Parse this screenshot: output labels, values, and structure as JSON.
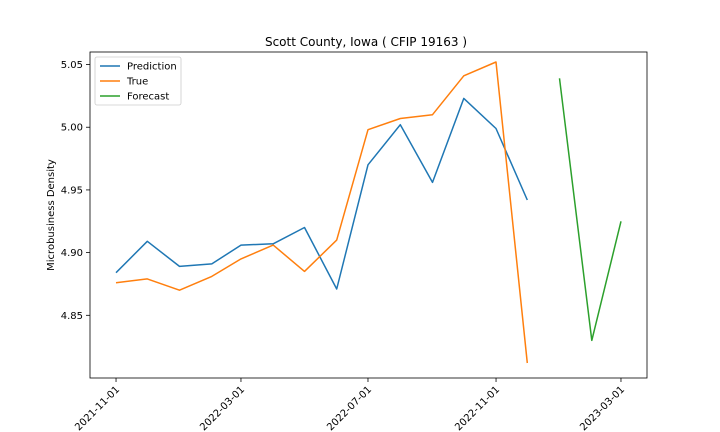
{
  "chart_data": {
    "type": "line",
    "title": "Scott County, Iowa ( CFIP 19163 )",
    "xlabel": "",
    "ylabel": "Microbusiness Density",
    "xlim": [
      "2021-10-07",
      "2023-03-26"
    ],
    "ylim": [
      4.8,
      5.06
    ],
    "x_ticks": [
      "2021-11-01",
      "2022-03-01",
      "2022-07-01",
      "2022-11-01",
      "2023-03-01"
    ],
    "y_ticks": [
      "4.85",
      "4.90",
      "4.95",
      "5.00",
      "5.05"
    ],
    "legend_position": "top-left",
    "grid": false,
    "series": [
      {
        "name": "Prediction",
        "color": "#1f77b4",
        "x": [
          "2021-11-01",
          "2021-12-01",
          "2022-01-01",
          "2022-02-01",
          "2022-03-01",
          "2022-04-01",
          "2022-05-01",
          "2022-06-01",
          "2022-07-01",
          "2022-08-01",
          "2022-09-01",
          "2022-10-01",
          "2022-11-01",
          "2022-12-01"
        ],
        "y": [
          4.884,
          4.909,
          4.889,
          4.891,
          4.906,
          4.907,
          4.92,
          4.871,
          4.97,
          5.002,
          4.956,
          5.023,
          4.999,
          4.942
        ]
      },
      {
        "name": "True",
        "color": "#ff7f0e",
        "x": [
          "2021-11-01",
          "2021-12-01",
          "2022-01-01",
          "2022-02-01",
          "2022-03-01",
          "2022-04-01",
          "2022-05-01",
          "2022-06-01",
          "2022-07-01",
          "2022-08-01",
          "2022-09-01",
          "2022-10-01",
          "2022-11-01",
          "2022-12-01"
        ],
        "y": [
          4.876,
          4.879,
          4.87,
          4.881,
          4.895,
          4.906,
          4.885,
          4.91,
          4.998,
          5.007,
          5.01,
          5.041,
          5.052,
          4.812
        ]
      },
      {
        "name": "Forecast",
        "color": "#2ca02c",
        "x": [
          "2023-01-01",
          "2023-02-01",
          "2023-03-01"
        ],
        "y": [
          5.039,
          4.83,
          4.925
        ]
      }
    ]
  }
}
